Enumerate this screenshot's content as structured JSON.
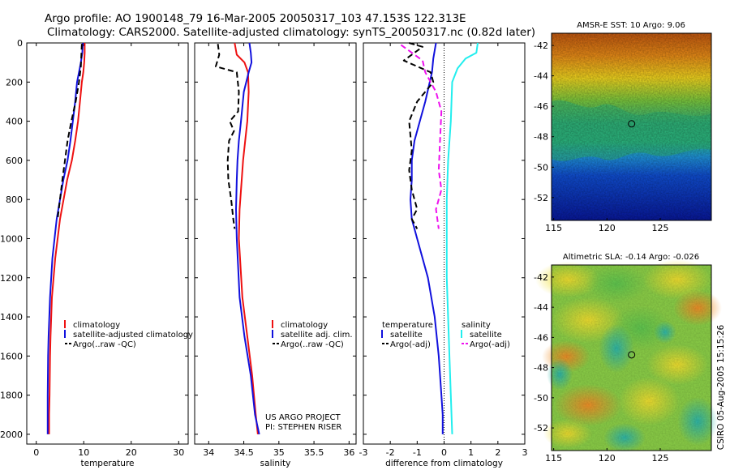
{
  "figure": {
    "title_line1": "Argo profile: AO 1900148_79 16-Mar-2005 20050317_103 47.153S 122.313E",
    "title_line2": "Climatology: CARS2000. Satellite-adjusted climatology: synTS_20050317.nc (0.82d later)",
    "credit": "CSIRO 05-Aug-2005 15:15:26",
    "colors": {
      "red": "#ee1111",
      "blue": "#1111dd",
      "black": "#000000",
      "cyan": "#22eeee",
      "magenta": "#ee11ee"
    }
  },
  "chart_data": [
    {
      "type": "line",
      "xlabel": "temperature",
      "ylabel": "",
      "xlim": [
        -2,
        32
      ],
      "ylim": [
        2050,
        0
      ],
      "xticks": [
        "0",
        "10",
        "20",
        "30"
      ],
      "yticks": [
        "0",
        "200",
        "400",
        "600",
        "800",
        "1000",
        "1200",
        "1400",
        "1600",
        "1800",
        "2000"
      ],
      "legend": {
        "position": "lower-right",
        "entries": [
          "climatology",
          "satellite-adjusted climatology",
          "Argo(..raw -QC)"
        ]
      },
      "series": [
        {
          "name": "climatology",
          "color": "red",
          "dash": "solid",
          "x": [
            10.2,
            10.2,
            10.1,
            9.9,
            9.6,
            9.2,
            8.8,
            8.2,
            7.5,
            6.5,
            5.0,
            4.0,
            3.3,
            3.0,
            2.9,
            2.8,
            2.7,
            2.7
          ],
          "y": [
            0,
            50,
            100,
            150,
            200,
            300,
            400,
            500,
            600,
            700,
            900,
            1100,
            1300,
            1500,
            1600,
            1800,
            1900,
            2000
          ]
        },
        {
          "name": "satellite-adjusted climatology",
          "color": "blue",
          "dash": "solid",
          "x": [
            9.8,
            9.7,
            9.4,
            9.0,
            8.6,
            8.2,
            7.7,
            7.2,
            6.6,
            5.7,
            4.3,
            3.4,
            2.9,
            2.6,
            2.5,
            2.4,
            2.4,
            2.4
          ],
          "y": [
            0,
            50,
            100,
            150,
            200,
            300,
            400,
            500,
            600,
            700,
            900,
            1100,
            1300,
            1500,
            1600,
            1800,
            1900,
            2000
          ]
        },
        {
          "name": "Argo(..raw -QC)",
          "color": "black",
          "dash": "dashed",
          "x": [
            9.6,
            9.5,
            9.4,
            9.0,
            8.3,
            7.4,
            6.6,
            5.5,
            4.5
          ],
          "y": [
            5,
            60,
            120,
            200,
            300,
            400,
            500,
            700,
            900
          ]
        }
      ],
      "annotations": []
    },
    {
      "type": "line",
      "xlabel": "salinity",
      "ylabel": "",
      "xlim": [
        33.8,
        36.1
      ],
      "ylim": [
        2050,
        0
      ],
      "xticks": [
        "34",
        "34.5",
        "35",
        "35.5",
        "36"
      ],
      "yticks": [],
      "legend": {
        "position": "lower-right",
        "entries": [
          "climatology",
          "satellite adj. clim.",
          "Argo(..raw -QC)"
        ]
      },
      "series": [
        {
          "name": "climatology",
          "color": "red",
          "dash": "solid",
          "x": [
            34.37,
            34.4,
            34.51,
            34.56,
            34.57,
            34.55,
            34.52,
            34.49,
            34.47,
            34.44,
            34.43,
            34.48,
            34.55,
            34.62,
            34.67,
            34.7
          ],
          "y": [
            0,
            60,
            100,
            150,
            250,
            400,
            500,
            600,
            700,
            850,
            1000,
            1300,
            1500,
            1700,
            1900,
            2000
          ]
        },
        {
          "name": "satellite adj. clim.",
          "color": "blue",
          "dash": "solid",
          "x": [
            34.58,
            34.6,
            34.61,
            34.57,
            34.5,
            34.46,
            34.43,
            34.41,
            34.4,
            34.39,
            34.4,
            34.44,
            34.51,
            34.6,
            34.66,
            34.72
          ],
          "y": [
            0,
            50,
            100,
            150,
            250,
            400,
            500,
            600,
            700,
            850,
            1000,
            1300,
            1500,
            1700,
            1900,
            2000
          ]
        },
        {
          "name": "Argo(..raw -QC)",
          "color": "black",
          "dash": "dashed",
          "x": [
            34.13,
            34.15,
            34.1,
            34.4,
            34.43,
            34.42,
            34.3,
            34.36,
            34.29,
            34.27,
            34.28,
            34.32,
            34.35,
            34.37
          ],
          "y": [
            5,
            60,
            120,
            150,
            250,
            350,
            400,
            450,
            500,
            600,
            700,
            800,
            900,
            950
          ]
        }
      ],
      "annotations": [
        "US ARGO PROJECT",
        "PI: STEPHEN RISER"
      ]
    },
    {
      "type": "line",
      "xlabel": "difference from climatology",
      "ylabel": "",
      "xlim": [
        -3,
        3
      ],
      "ylim": [
        2050,
        0
      ],
      "xticks": [
        "-3",
        "-2",
        "-1",
        "0",
        "1",
        "2",
        "3"
      ],
      "yticks": [],
      "legend": {
        "position": "lower-center",
        "entries": [
          "temperature",
          "satellite",
          "Argo(-adj)",
          "salinity",
          "satellite",
          "Argo(-adj)"
        ]
      },
      "series": [
        {
          "name": "satellite",
          "color": "blue",
          "dash": "solid",
          "x": [
            -0.3,
            -0.4,
            -0.45,
            -0.7,
            -0.9,
            -1.1,
            -1.2,
            -1.2,
            -1.25,
            -1.2,
            -1.0,
            -0.6,
            -0.35,
            -0.2,
            -0.1,
            -0.05,
            -0.05
          ],
          "y": [
            0,
            80,
            150,
            300,
            400,
            500,
            600,
            700,
            800,
            900,
            1000,
            1200,
            1400,
            1600,
            1800,
            1900,
            2000
          ]
        },
        {
          "name": "Argo(-adj)",
          "color": "black",
          "dash": "dashed",
          "x": [
            -1.3,
            -0.8,
            -1.5,
            -0.5,
            -0.4,
            -1.0,
            -1.3,
            -1.2,
            -1.3,
            -1.2,
            -1.0,
            -1.2,
            -1.0
          ],
          "y": [
            0,
            20,
            90,
            150,
            200,
            300,
            400,
            550,
            650,
            750,
            850,
            900,
            950
          ]
        },
        {
          "name": "satellite",
          "color": "cyan",
          "dash": "solid",
          "x": [
            1.25,
            1.2,
            0.8,
            0.5,
            0.3,
            0.25,
            0.15,
            0.1,
            0.1,
            0.1,
            0.2,
            0.25,
            0.3
          ],
          "y": [
            0,
            50,
            80,
            130,
            200,
            400,
            600,
            800,
            1000,
            1200,
            1600,
            1800,
            2000
          ]
        },
        {
          "name": "Argo(-adj)",
          "color": "magenta",
          "dash": "dashed",
          "x": [
            -1.6,
            -0.8,
            -0.7,
            -0.3,
            -0.1,
            -0.15,
            -0.2,
            -0.1,
            -0.3,
            -0.2
          ],
          "y": [
            10,
            90,
            150,
            250,
            350,
            500,
            650,
            750,
            850,
            950
          ]
        }
      ],
      "annotations": []
    },
    {
      "type": "heatmap",
      "title": "AMSR-E SST: 10 Argo: 9.06",
      "xticks": [
        "115",
        "120",
        "125"
      ],
      "yticks": [
        "-42",
        "-44",
        "-46",
        "-48",
        "-50",
        "-52"
      ],
      "xlim": [
        114.8,
        129.8
      ],
      "ylim": [
        -53.5,
        -41.2
      ],
      "marker": {
        "x": 122.313,
        "y": -47.153
      }
    },
    {
      "type": "heatmap",
      "title": "Altimetric SLA: -0.14 Argo: -0.026",
      "xticks": [
        "115",
        "120",
        "125"
      ],
      "yticks": [
        "-42",
        "-44",
        "-46",
        "-48",
        "-50",
        "-52"
      ],
      "xlim": [
        114.8,
        129.8
      ],
      "ylim": [
        -53.5,
        -41.2
      ],
      "marker": {
        "x": 122.313,
        "y": -47.153
      }
    }
  ]
}
